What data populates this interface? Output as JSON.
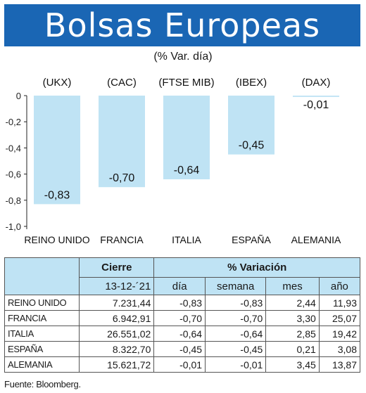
{
  "title": "Bolsas Europeas",
  "subtitle": "(% Var. día)",
  "colors": {
    "header_bg": "#1a66b4",
    "bar": "#bfe3f4",
    "table_header_bg": "#bfe3f4"
  },
  "chart_data": {
    "type": "bar",
    "categories": [
      "REINO UNIDO",
      "FRANCIA",
      "ITALIA",
      "ESPAÑA",
      "ALEMANIA"
    ],
    "codes": [
      "(UKX)",
      "(CAC)",
      "(FTSE MIB)",
      "(IBEX)",
      "(DAX)"
    ],
    "values": [
      -0.83,
      -0.7,
      -0.64,
      -0.45,
      -0.01
    ],
    "value_labels": [
      "-0,83",
      "-0,70",
      "-0,64",
      "-0,45",
      "-0,01"
    ],
    "yticks": [
      "0",
      "-0,2",
      "-0,4",
      "-0,6",
      "-0,8",
      "-1,0"
    ],
    "ylim": [
      -1.0,
      0
    ]
  },
  "table": {
    "header_top": [
      "Cierre",
      "% Variación"
    ],
    "header_sub": [
      "13-12-´21",
      "día",
      "semana",
      "mes",
      "año"
    ],
    "rows": [
      {
        "name": "REINO UNIDO",
        "cierre": "7.231,44",
        "dia": "-0,83",
        "semana": "-0,83",
        "mes": "2,44",
        "anio": "11,93"
      },
      {
        "name": "FRANCIA",
        "cierre": "6.942,91",
        "dia": "-0,70",
        "semana": "-0,70",
        "mes": "3,30",
        "anio": "25,07"
      },
      {
        "name": "ITALIA",
        "cierre": "26.551,02",
        "dia": "-0,64",
        "semana": "-0,64",
        "mes": "2,85",
        "anio": "19,42"
      },
      {
        "name": "ESPAÑA",
        "cierre": "8.322,70",
        "dia": "-0,45",
        "semana": "-0,45",
        "mes": "0,21",
        "anio": "3,08"
      },
      {
        "name": "ALEMANIA",
        "cierre": "15.621,72",
        "dia": "-0,01",
        "semana": "-0,01",
        "mes": "3,45",
        "anio": "13,87"
      }
    ]
  },
  "source": "Fuente: Bloomberg."
}
